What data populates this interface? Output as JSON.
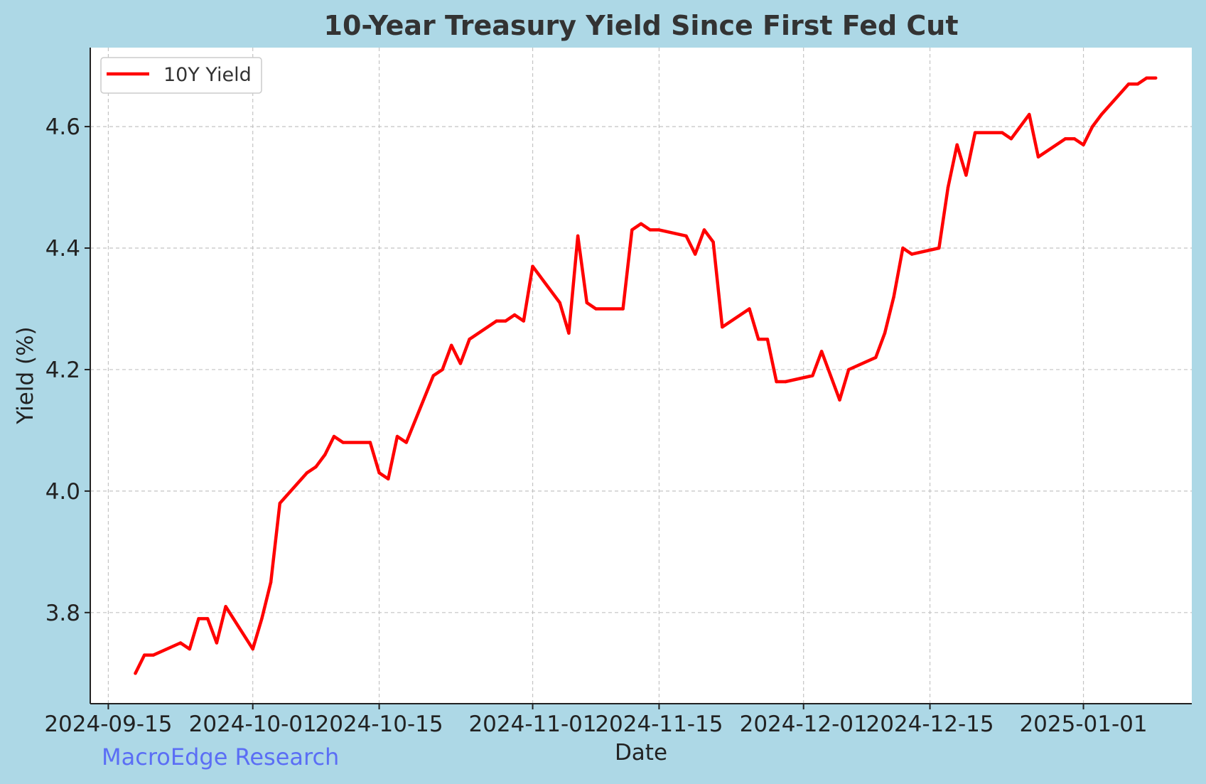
{
  "chart_data": {
    "type": "line",
    "title": "10-Year Treasury Yield Since First Fed Cut",
    "xlabel": "Date",
    "ylabel": "Yield (%)",
    "ylim": [
      3.65,
      4.73
    ],
    "xlim": [
      "2024-09-13",
      "2025-01-13"
    ],
    "grid": true,
    "legend_position": "top-left",
    "x_ticks": [
      "2024-09-15",
      "2024-10-01",
      "2024-10-15",
      "2024-11-01",
      "2024-11-15",
      "2024-12-01",
      "2024-12-15",
      "2025-01-01"
    ],
    "y_ticks": [
      3.8,
      4.0,
      4.2,
      4.4,
      4.6
    ],
    "y_tick_labels": [
      "3.8",
      "4.0",
      "4.2",
      "4.4",
      "4.6"
    ],
    "series": [
      {
        "name": "10Y Yield",
        "color": "#ff0000",
        "x": [
          "2024-09-18",
          "2024-09-19",
          "2024-09-20",
          "2024-09-23",
          "2024-09-24",
          "2024-09-25",
          "2024-09-26",
          "2024-09-27",
          "2024-09-28",
          "2024-10-01",
          "2024-10-02",
          "2024-10-03",
          "2024-10-04",
          "2024-10-07",
          "2024-10-08",
          "2024-10-09",
          "2024-10-10",
          "2024-10-11",
          "2024-10-14",
          "2024-10-15",
          "2024-10-16",
          "2024-10-17",
          "2024-10-18",
          "2024-10-21",
          "2024-10-22",
          "2024-10-23",
          "2024-10-24",
          "2024-10-25",
          "2024-10-28",
          "2024-10-29",
          "2024-10-30",
          "2024-10-31",
          "2024-11-01",
          "2024-11-04",
          "2024-11-05",
          "2024-11-06",
          "2024-11-07",
          "2024-11-08",
          "2024-11-11",
          "2024-11-12",
          "2024-11-13",
          "2024-11-14",
          "2024-11-15",
          "2024-11-18",
          "2024-11-19",
          "2024-11-20",
          "2024-11-21",
          "2024-11-22",
          "2024-11-25",
          "2024-11-26",
          "2024-11-27",
          "2024-11-28",
          "2024-11-29",
          "2024-12-02",
          "2024-12-03",
          "2024-12-04",
          "2024-12-05",
          "2024-12-06",
          "2024-12-09",
          "2024-12-10",
          "2024-12-11",
          "2024-12-12",
          "2024-12-13",
          "2024-12-16",
          "2024-12-17",
          "2024-12-18",
          "2024-12-19",
          "2024-12-20",
          "2024-12-23",
          "2024-12-24",
          "2024-12-26",
          "2024-12-27",
          "2024-12-30",
          "2024-12-31",
          "2025-01-01",
          "2025-01-02",
          "2025-01-03",
          "2025-01-06",
          "2025-01-07",
          "2025-01-08",
          "2025-01-09"
        ],
        "y": [
          3.7,
          3.73,
          3.73,
          3.75,
          3.74,
          3.79,
          3.79,
          3.75,
          3.81,
          3.74,
          3.79,
          3.85,
          3.98,
          4.03,
          4.04,
          4.06,
          4.09,
          4.08,
          4.08,
          4.03,
          4.02,
          4.09,
          4.08,
          4.19,
          4.2,
          4.24,
          4.21,
          4.25,
          4.28,
          4.28,
          4.29,
          4.28,
          4.37,
          4.31,
          4.26,
          4.42,
          4.31,
          4.3,
          4.3,
          4.43,
          4.44,
          4.43,
          4.43,
          4.42,
          4.39,
          4.43,
          4.41,
          4.27,
          4.3,
          4.25,
          4.25,
          4.18,
          4.18,
          4.19,
          4.23,
          4.19,
          4.15,
          4.2,
          4.22,
          4.26,
          4.32,
          4.4,
          4.39,
          4.4,
          4.5,
          4.57,
          4.52,
          4.59,
          4.59,
          4.58,
          4.62,
          4.55,
          4.58,
          4.58,
          4.57,
          4.6,
          4.62,
          4.67,
          4.67,
          4.68,
          4.68
        ]
      }
    ]
  },
  "footer": {
    "source_label": "MacroEdge Research"
  }
}
